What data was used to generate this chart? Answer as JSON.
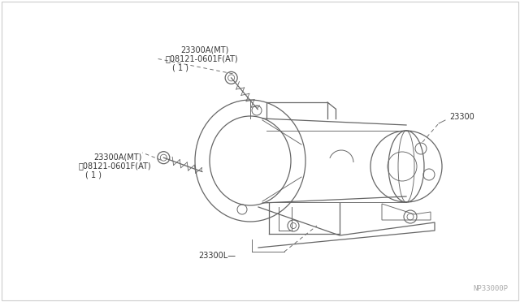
{
  "background_color": "#ffffff",
  "watermark": "NP33000P",
  "line_color": "#666666",
  "text_color": "#333333",
  "font_size_main": 7.0,
  "font_size_watermark": 6.5,
  "label_top": [
    "23300A(MT)",
    "B 08121-0601F(AT)",
    "( 1 )"
  ],
  "label_left": [
    "23300A(MT)",
    "B 08121-0601F(AT)",
    "( 1 )"
  ],
  "label_motor": "23300",
  "label_bottom": "23300L"
}
